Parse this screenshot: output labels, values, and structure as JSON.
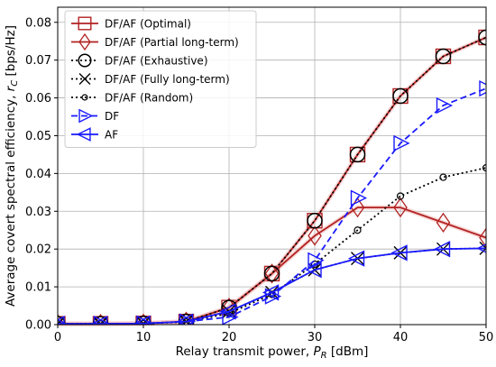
{
  "chart_data": {
    "type": "line",
    "xlabel": "Relay transmit power, P_R [dBm]",
    "ylabel": "Average covert spectral efficiency, r_C [bps/Hz]",
    "xlim": [
      0,
      50
    ],
    "ylim": [
      0,
      0.084
    ],
    "xticks": [
      0,
      10,
      20,
      30,
      40,
      50
    ],
    "yticks": [
      0.0,
      0.01,
      0.02,
      0.03,
      0.04,
      0.05,
      0.06,
      0.07,
      0.08
    ],
    "ytick_labels": [
      "0.00",
      "0.01",
      "0.02",
      "0.03",
      "0.04",
      "0.05",
      "0.06",
      "0.07",
      "0.08"
    ],
    "grid": true,
    "legend_position": "upper-left",
    "series": [
      {
        "name": "DF/AF (Optimal)",
        "color": "#b22222",
        "linestyle": "solid",
        "marker": "square",
        "x": [
          0,
          5,
          10,
          15,
          20,
          25,
          30,
          35,
          40,
          45,
          50
        ],
        "y": [
          0.0002,
          0.0002,
          0.0003,
          0.0008,
          0.0045,
          0.0135,
          0.0275,
          0.045,
          0.0605,
          0.071,
          0.076
        ]
      },
      {
        "name": "DF/AF (Partial long-term)",
        "color": "#b22222",
        "linestyle": "solid",
        "marker": "diamond",
        "x": [
          0,
          5,
          10,
          15,
          20,
          25,
          30,
          35,
          40,
          45,
          50
        ],
        "y": [
          0.0002,
          0.0002,
          0.0003,
          0.0008,
          0.0045,
          0.0135,
          0.0235,
          0.031,
          0.031,
          0.027,
          0.023
        ]
      },
      {
        "name": "DF/AF (Exhaustive)",
        "color": "#000000",
        "linestyle": "dotted",
        "marker": "circle-large",
        "x": [
          0,
          5,
          10,
          15,
          20,
          25,
          30,
          35,
          40,
          45,
          50
        ],
        "y": [
          0.0002,
          0.0002,
          0.0003,
          0.0008,
          0.0045,
          0.0135,
          0.0275,
          0.045,
          0.0605,
          0.071,
          0.076
        ]
      },
      {
        "name": "DF/AF (Fully long-term)",
        "color": "#000000",
        "linestyle": "dotted",
        "marker": "x",
        "x": [
          0,
          5,
          10,
          15,
          20,
          25,
          30,
          35,
          40,
          45,
          50
        ],
        "y": [
          0.0002,
          0.0002,
          0.0003,
          0.0008,
          0.0035,
          0.0085,
          0.0145,
          0.0175,
          0.019,
          0.02,
          0.0202
        ]
      },
      {
        "name": "DF/AF (Random)",
        "color": "#000000",
        "linestyle": "dotted",
        "marker": "circle-small",
        "x": [
          0,
          5,
          10,
          15,
          20,
          25,
          30,
          35,
          40,
          45,
          50
        ],
        "y": [
          0.0002,
          0.0002,
          0.0003,
          0.0007,
          0.003,
          0.008,
          0.016,
          0.025,
          0.034,
          0.039,
          0.0415
        ]
      },
      {
        "name": "DF",
        "color": "#1a1aff",
        "linestyle": "dashed",
        "marker": "triangle-right",
        "x": [
          0,
          5,
          10,
          15,
          20,
          25,
          30,
          35,
          40,
          45,
          50
        ],
        "y": [
          0.0002,
          0.0002,
          0.0003,
          0.0008,
          0.002,
          0.0075,
          0.017,
          0.0335,
          0.048,
          0.058,
          0.0625
        ]
      },
      {
        "name": "AF",
        "color": "#1a1aff",
        "linestyle": "solid",
        "marker": "triangle-left",
        "x": [
          0,
          5,
          10,
          15,
          20,
          25,
          30,
          35,
          40,
          45,
          50
        ],
        "y": [
          0.0002,
          0.0002,
          0.0003,
          0.0008,
          0.0035,
          0.0085,
          0.0145,
          0.0175,
          0.019,
          0.02,
          0.0202
        ]
      }
    ]
  }
}
